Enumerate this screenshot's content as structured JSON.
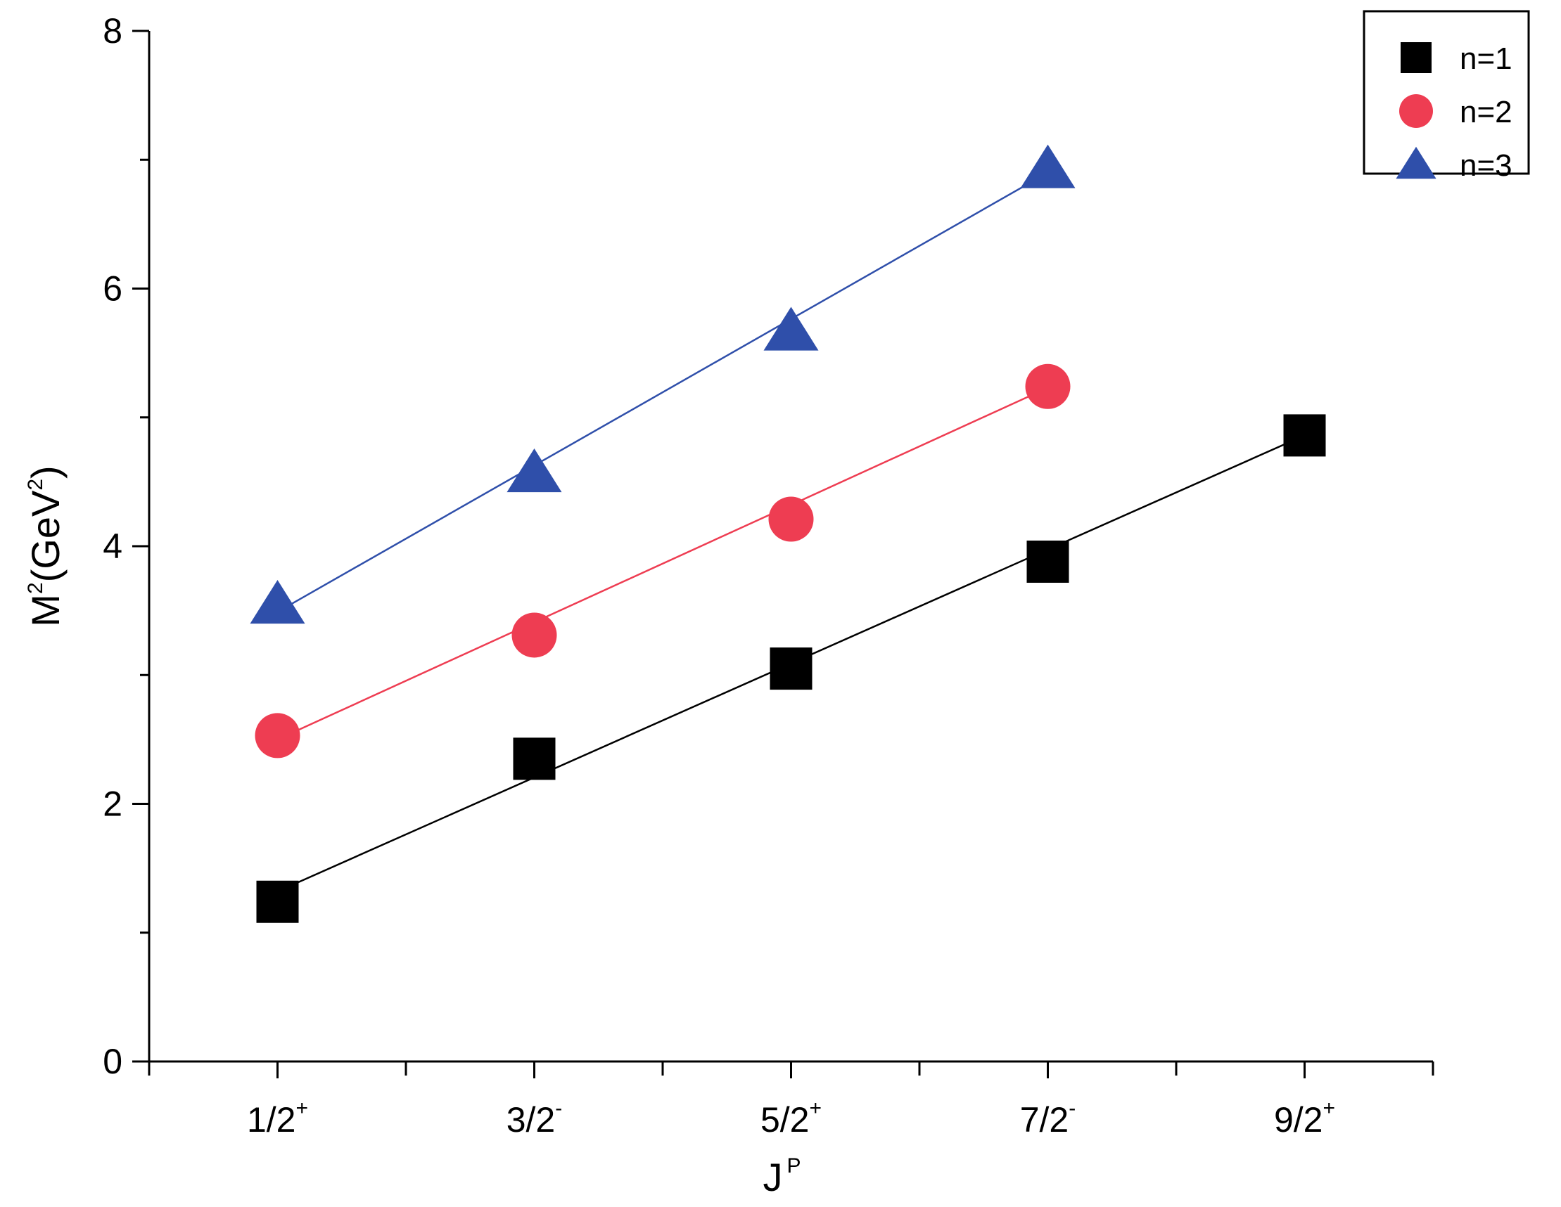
{
  "chart_data": {
    "type": "scatter",
    "title": "",
    "xlabel": {
      "base": "J",
      "sup": "P"
    },
    "ylabel": {
      "pre": "M",
      "pre_sup": "2",
      "mid": "(GeV",
      "mid_sup": "2",
      "post": ")"
    },
    "categories": [
      {
        "base": "1/2",
        "sup": "+"
      },
      {
        "base": "3/2",
        "sup": "-"
      },
      {
        "base": "5/2",
        "sup": "+"
      },
      {
        "base": "7/2",
        "sup": "-"
      },
      {
        "base": "9/2",
        "sup": "+"
      }
    ],
    "xlim": [
      0.5,
      5.5
    ],
    "ylim": [
      0,
      8
    ],
    "y_ticks": [
      0,
      2,
      4,
      6,
      8
    ],
    "y_ticks_labeled": [
      "0",
      "2",
      "4",
      "6",
      "8"
    ],
    "x_minor_ticks": [
      0.5,
      1.5,
      2.5,
      3.5,
      4.5,
      5.5
    ],
    "y_minor_ticks": [
      1,
      3,
      5,
      7
    ],
    "grid": false,
    "legend_position": "top-right",
    "series": [
      {
        "name": "n=1",
        "marker": "square",
        "color": "#000000",
        "x": [
          1,
          2,
          3,
          4,
          5
        ],
        "values": [
          1.24,
          2.35,
          3.05,
          3.88,
          4.86
        ],
        "fit": [
          1.32,
          4.86
        ]
      },
      {
        "name": "n=2",
        "marker": "circle",
        "color": "#ee3d52",
        "x": [
          1,
          2,
          3,
          4
        ],
        "values": [
          2.53,
          3.31,
          4.21,
          5.24
        ],
        "fit": [
          2.5,
          5.23
        ]
      },
      {
        "name": "n=3",
        "marker": "triangle",
        "color": "#2f4faa",
        "x": [
          1,
          2,
          3,
          4
        ],
        "values": [
          3.55,
          4.57,
          5.67,
          6.93
        ],
        "fit": [
          3.49,
          6.9
        ]
      }
    ]
  }
}
